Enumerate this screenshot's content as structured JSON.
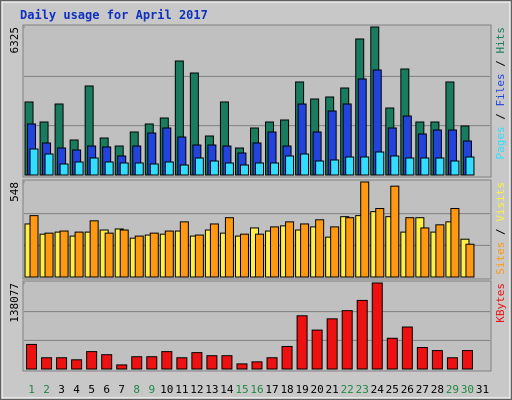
{
  "chart_data": [
    {
      "type": "bar",
      "title": "Daily usage for April 2017",
      "ylim": [
        0,
        6325
      ],
      "yticks": [
        6325
      ],
      "legend_separator": " / ",
      "series": [
        {
          "name": "Pages",
          "color": "#33ddff",
          "values": [
            1111,
            897,
            470,
            556,
            727,
            556,
            513,
            513,
            470,
            556,
            427,
            727,
            598,
            513,
            427,
            513,
            513,
            812,
            897,
            598,
            641,
            769,
            769,
            983,
            812,
            727,
            727,
            727,
            598,
            769,
            null
          ]
        },
        {
          "name": "Files",
          "color": "#2244dd",
          "values": [
            2180,
            1368,
            1154,
            1068,
            1239,
            1197,
            812,
            1239,
            1795,
            2009,
            1624,
            1282,
            1282,
            1239,
            940,
            1368,
            1838,
            1239,
            3034,
            1838,
            2735,
            3034,
            4103,
            4487,
            2009,
            2521,
            1752,
            1923,
            1923,
            1453,
            null
          ]
        },
        {
          "name": "Hits",
          "color": "#1a7c5e",
          "values": [
            3120,
            2265,
            3034,
            1496,
            3804,
            1581,
            1239,
            1838,
            2180,
            2436,
            4872,
            4359,
            1667,
            3120,
            1154,
            2009,
            2265,
            2351,
            3975,
            3248,
            3334,
            3718,
            5812,
            6325,
            2863,
            4530,
            2265,
            2265,
            3975,
            2094,
            null
          ]
        }
      ]
    },
    {
      "type": "bar",
      "ylim": [
        0,
        548
      ],
      "yticks": [
        548
      ],
      "legend_separator": " / ",
      "series": [
        {
          "name": "Sites",
          "color": "#ff9911",
          "values": [
            354,
            253,
            265,
            259,
            324,
            253,
            271,
            236,
            253,
            265,
            318,
            242,
            306,
            342,
            247,
            247,
            289,
            318,
            306,
            330,
            289,
            342,
            548,
            395,
            524,
            342,
            283,
            301,
            395,
            189,
            null
          ]
        },
        {
          "name": "Visits",
          "color": "#ffee44",
          "values": [
            306,
            247,
            259,
            236,
            259,
            271,
            277,
            224,
            242,
            247,
            265,
            236,
            271,
            253,
            236,
            283,
            265,
            295,
            271,
            289,
            230,
            348,
            354,
            377,
            348,
            259,
            342,
            259,
            318,
            218,
            null
          ]
        }
      ]
    },
    {
      "type": "bar",
      "ylim": [
        0,
        138077
      ],
      "yticks": [
        138077
      ],
      "series": [
        {
          "name": "KBytes",
          "color": "#ee1111",
          "values": [
            39450,
            18081,
            18081,
            14794,
            27944,
            23012,
            6575,
            19725,
            19725,
            27944,
            18081,
            26300,
            21369,
            21369,
            8219,
            11506,
            18081,
            36163,
            85475,
            62463,
            80544,
            93694,
            110132,
            138077,
            49313,
            67394,
            34519,
            29588,
            18081,
            29588,
            null
          ]
        }
      ],
      "categories": [
        "1",
        "2",
        "3",
        "4",
        "5",
        "6",
        "7",
        "8",
        "9",
        "10",
        "11",
        "12",
        "13",
        "14",
        "15",
        "16",
        "17",
        "18",
        "19",
        "20",
        "21",
        "22",
        "23",
        "24",
        "25",
        "26",
        "27",
        "28",
        "29",
        "30",
        "31"
      ],
      "category_colors": [
        "#228844",
        "#228844",
        "#000000",
        "#000000",
        "#000000",
        "#000000",
        "#000000",
        "#228844",
        "#228844",
        "#000000",
        "#000000",
        "#000000",
        "#000000",
        "#000000",
        "#228844",
        "#228844",
        "#000000",
        "#000000",
        "#000000",
        "#000000",
        "#000000",
        "#228844",
        "#228844",
        "#000000",
        "#000000",
        "#000000",
        "#000000",
        "#000000",
        "#228844",
        "#228844",
        "#000000"
      ]
    }
  ]
}
